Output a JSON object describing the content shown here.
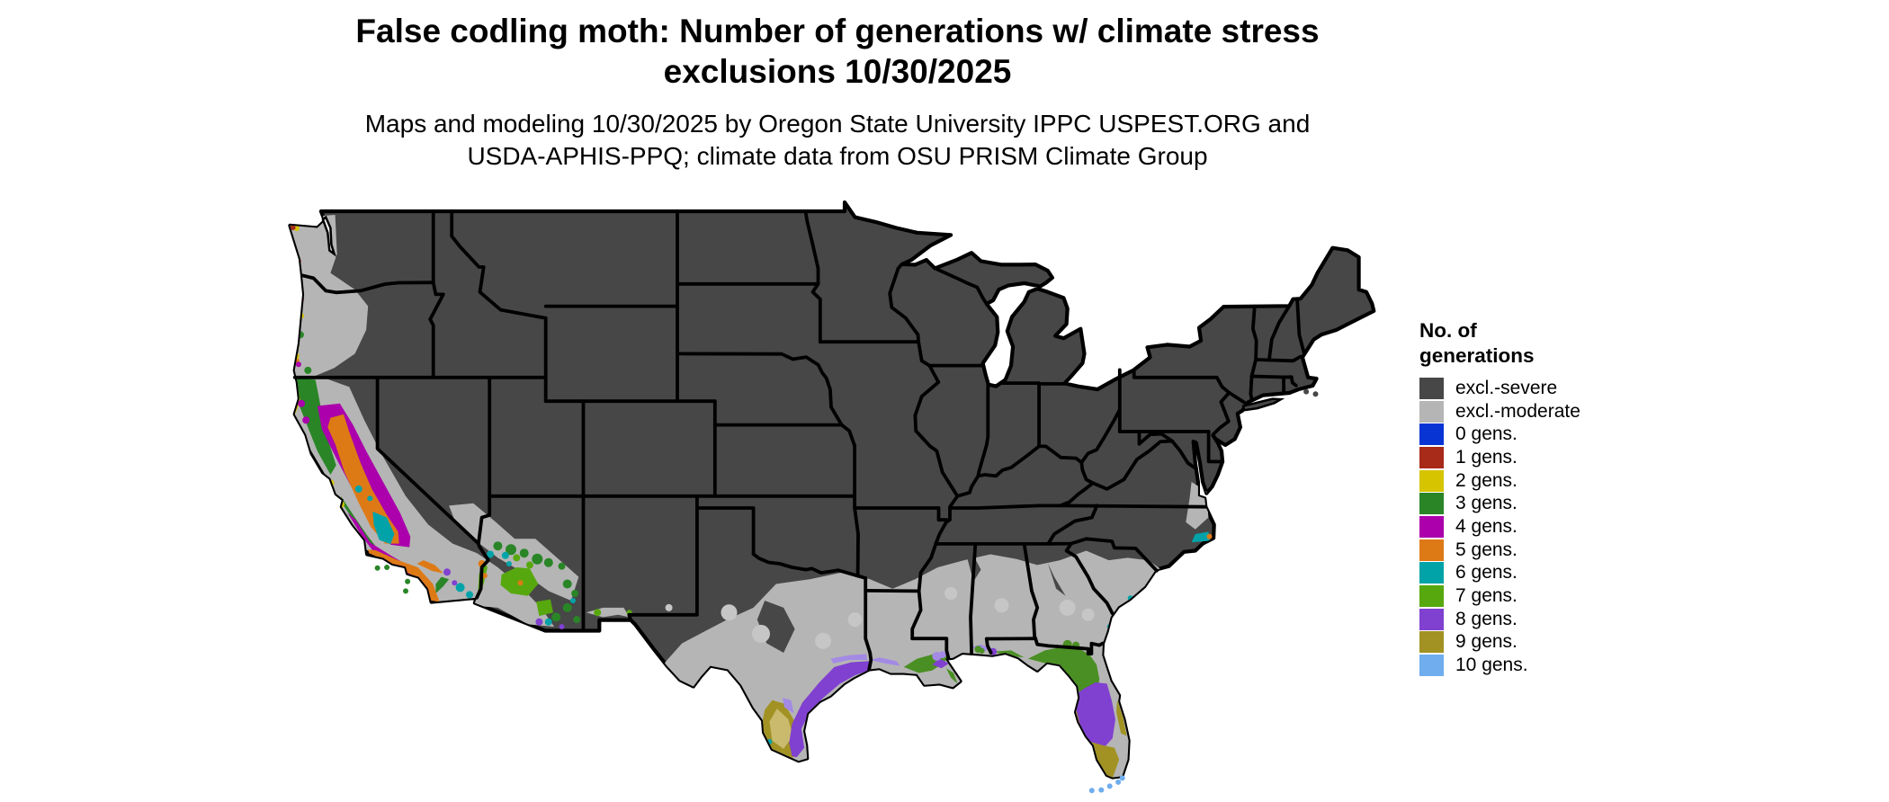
{
  "header": {
    "title_line1": "False codling moth: Number of generations w/ climate stress",
    "title_line2": "exclusions 10/30/2025",
    "subtitle_line1": "Maps and modeling 10/30/2025 by Oregon State University IPPC USPEST.ORG and",
    "subtitle_line2": "USDA-APHIS-PPQ; climate data from OSU PRISM Climate Group"
  },
  "legend": {
    "title_line1": "No. of",
    "title_line2": "generations",
    "items": [
      {
        "label": "excl.-severe",
        "color": "#474747"
      },
      {
        "label": "excl.-moderate",
        "color": "#b5b5b5"
      },
      {
        "label": "0 gens.",
        "color": "#0834d4"
      },
      {
        "label": "1 gens.",
        "color": "#a82a18"
      },
      {
        "label": "2 gens.",
        "color": "#d6c400"
      },
      {
        "label": "3 gens.",
        "color": "#2a8527"
      },
      {
        "label": "4 gens.",
        "color": "#ab00ab"
      },
      {
        "label": "5 gens.",
        "color": "#dd7a16"
      },
      {
        "label": "6 gens.",
        "color": "#02a3a8"
      },
      {
        "label": "7 gens.",
        "color": "#57a80e"
      },
      {
        "label": "8 gens.",
        "color": "#8040d0"
      },
      {
        "label": "9 gens.",
        "color": "#a19223"
      },
      {
        "label": "10 gens.",
        "color": "#6fadee"
      }
    ]
  },
  "map": {
    "water_color": "#ffffff",
    "border_color": "#000000",
    "land_default_class": "excl.-severe",
    "blend_colors": {
      "khaki_9gens_light": "#c9ba6e",
      "lavender_8gens_light": "#a38ae4",
      "gulf_green_3gens": "#4a8f23",
      "moderate_light": "#c6c6c6"
    },
    "regions": [
      {
        "area": "Interior and northern US",
        "classes": "excl.-severe"
      },
      {
        "area": "Pacific NW lowlands, California fringe, SW deserts, southern Plains and Gulf/Atlantic coastal plain",
        "classes": "excl.-moderate"
      },
      {
        "area": "California Central Valley and southern coast",
        "classes": "4-6 gens."
      },
      {
        "area": "Northern/central California coast",
        "classes": "2-3 gens."
      },
      {
        "area": "Phoenix, Tucson and lower Colorado River, AZ",
        "classes": "7 gens."
      },
      {
        "area": "Texas Gulf Coast",
        "classes": "8 gens."
      },
      {
        "area": "Lower Rio Grande Valley, TX",
        "classes": "9 gens."
      },
      {
        "area": "Louisiana delta and Gulf shore patches",
        "classes": "3 and 8 gens."
      },
      {
        "area": "North-central Florida and panhandle coast",
        "classes": "3 gens."
      },
      {
        "area": "Central Florida peninsula",
        "classes": "8 gens."
      },
      {
        "area": "South Florida",
        "classes": "9 gens."
      },
      {
        "area": "Florida Keys",
        "classes": "10 gens."
      },
      {
        "area": "Cape Hatteras NC coast",
        "classes": "6 gens."
      },
      {
        "area": "Washington/Oregon coast specks",
        "classes": "1-2 gens."
      }
    ]
  }
}
